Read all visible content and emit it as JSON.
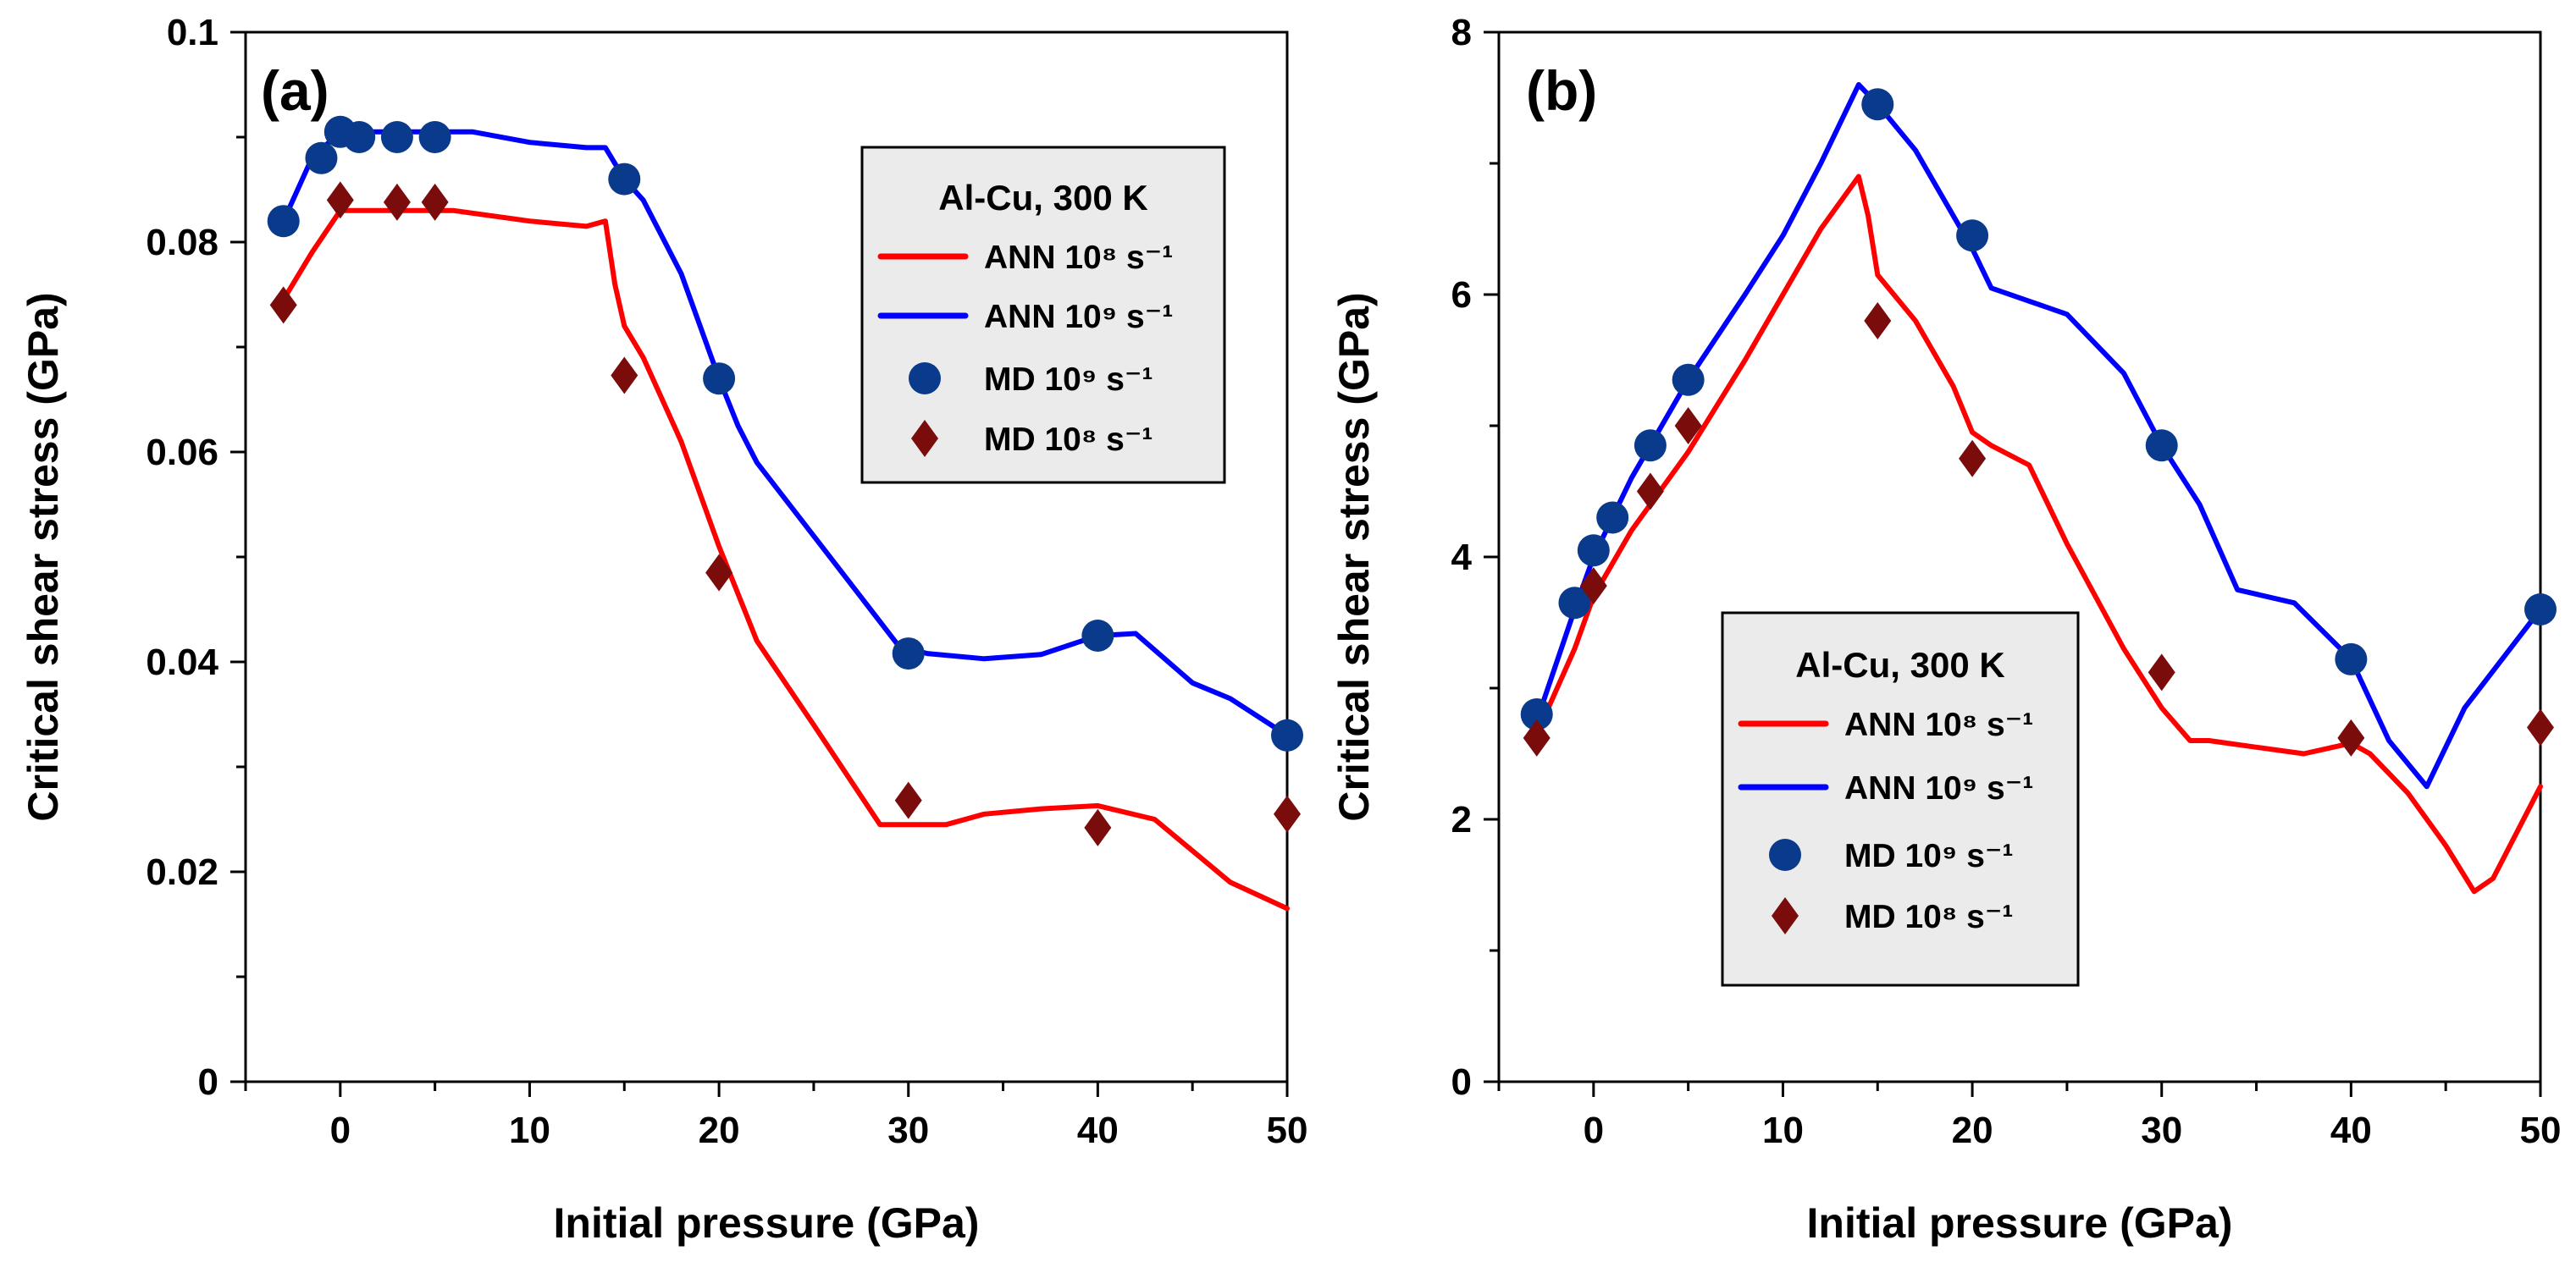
{
  "chart_data": [
    {
      "type": "line",
      "panel_label": "(a)",
      "title": "",
      "xlabel": "Initial pressure (GPa)",
      "ylabel": "Critical shear stress (GPa)",
      "xlim": [
        -5,
        50
      ],
      "ylim": [
        0,
        0.1
      ],
      "xticks": [
        0,
        10,
        20,
        30,
        40,
        50
      ],
      "yticks": [
        0,
        0.02,
        0.04,
        0.06,
        0.08,
        0.1
      ],
      "ytick_labels": [
        "0",
        "0.02",
        "0.04",
        "0.06",
        "0.08",
        "0.1"
      ],
      "legend": {
        "title": "Al-Cu, 300 K",
        "position": "upper-right",
        "entries": [
          {
            "label": "ANN 10⁸ s⁻¹",
            "series": "ann_1e8"
          },
          {
            "label": "ANN 10⁹ s⁻¹",
            "series": "ann_1e9"
          },
          {
            "label": "MD 10⁹ s⁻¹",
            "series": "md_1e9"
          },
          {
            "label": "MD 10⁸ s⁻¹",
            "series": "md_1e8"
          }
        ]
      },
      "series": [
        {
          "id": "ann_1e8",
          "name": "ANN 10⁸ s⁻¹",
          "kind": "line",
          "color": "#ff0000",
          "x": [
            -3,
            -1.5,
            0,
            3,
            6,
            10,
            13,
            14,
            14.5,
            15,
            16,
            18,
            20,
            22,
            25,
            28.5,
            32,
            34,
            37,
            40,
            43,
            45,
            47,
            50
          ],
          "y": [
            0.0745,
            0.079,
            0.083,
            0.083,
            0.083,
            0.082,
            0.0815,
            0.082,
            0.076,
            0.072,
            0.069,
            0.061,
            0.051,
            0.042,
            0.034,
            0.0245,
            0.0245,
            0.0255,
            0.026,
            0.0263,
            0.025,
            0.022,
            0.019,
            0.0165
          ]
        },
        {
          "id": "ann_1e9",
          "name": "ANN 10⁹ s⁻¹",
          "kind": "line",
          "color": "#0000ff",
          "x": [
            -3,
            -1.5,
            0,
            2,
            5,
            7,
            10,
            13,
            14,
            15,
            16,
            18,
            20,
            21,
            22,
            25,
            28,
            29.5,
            31,
            34,
            37,
            40,
            42,
            45,
            47,
            50
          ],
          "y": [
            0.082,
            0.088,
            0.0905,
            0.0905,
            0.0905,
            0.0905,
            0.0895,
            0.089,
            0.089,
            0.086,
            0.084,
            0.077,
            0.067,
            0.0625,
            0.059,
            0.052,
            0.045,
            0.0415,
            0.0408,
            0.0403,
            0.0407,
            0.0425,
            0.0427,
            0.038,
            0.0365,
            0.033
          ]
        },
        {
          "id": "md_1e9",
          "name": "MD 10⁹ s⁻¹",
          "kind": "scatter",
          "marker": "circle",
          "color": "#0a3a8c",
          "x": [
            -3,
            -1,
            0,
            1,
            3,
            5,
            15,
            20,
            30,
            40,
            50
          ],
          "y": [
            0.082,
            0.088,
            0.0905,
            0.09,
            0.09,
            0.09,
            0.086,
            0.067,
            0.0408,
            0.0425,
            0.033
          ]
        },
        {
          "id": "md_1e8",
          "name": "MD 10⁸ s⁻¹",
          "kind": "scatter",
          "marker": "diamond",
          "color": "#7b0c0c",
          "x": [
            -3,
            0,
            3,
            5,
            15,
            20,
            30,
            40,
            50
          ],
          "y": [
            0.074,
            0.084,
            0.0838,
            0.0838,
            0.0673,
            0.0485,
            0.0268,
            0.0242,
            0.0255
          ]
        }
      ]
    },
    {
      "type": "line",
      "panel_label": "(b)",
      "title": "",
      "xlabel": "Initial pressure (GPa)",
      "ylabel": "Critical shear stress (GPa)",
      "xlim": [
        -5,
        50
      ],
      "ylim": [
        0,
        8
      ],
      "xticks": [
        0,
        10,
        20,
        30,
        40,
        50
      ],
      "yticks": [
        0,
        2,
        4,
        6,
        8
      ],
      "ytick_labels": [
        "0",
        "2",
        "4",
        "6",
        "8"
      ],
      "legend": {
        "title": "Al-Cu, 300 K",
        "position": "lower-center",
        "entries": [
          {
            "label": "ANN 10⁸ s⁻¹",
            "series": "ann_1e8"
          },
          {
            "label": "ANN 10⁹ s⁻¹",
            "series": "ann_1e9"
          },
          {
            "label": "MD 10⁹ s⁻¹",
            "series": "md_1e9"
          },
          {
            "label": "MD 10⁸ s⁻¹",
            "series": "md_1e8"
          }
        ]
      },
      "series": [
        {
          "id": "ann_1e8",
          "name": "ANN 10⁸ s⁻¹",
          "kind": "line",
          "color": "#ff0000",
          "x": [
            -3,
            -1,
            0,
            2,
            5,
            8,
            10,
            12,
            14,
            14.5,
            15,
            17,
            19,
            20,
            21,
            23,
            25,
            28,
            30,
            31.5,
            32.5,
            35,
            37.5,
            40,
            41,
            43,
            45,
            46.5,
            47.5,
            50
          ],
          "y": [
            2.65,
            3.3,
            3.7,
            4.2,
            4.8,
            5.5,
            6.0,
            6.5,
            6.9,
            6.6,
            6.15,
            5.8,
            5.3,
            4.95,
            4.85,
            4.7,
            4.1,
            3.3,
            2.85,
            2.6,
            2.6,
            2.55,
            2.5,
            2.58,
            2.5,
            2.2,
            1.8,
            1.45,
            1.55,
            2.25
          ]
        },
        {
          "id": "ann_1e9",
          "name": "ANN 10⁹ s⁻¹",
          "kind": "line",
          "color": "#0000ff",
          "x": [
            -3,
            -1,
            0,
            2,
            5,
            8,
            10,
            12,
            14,
            15,
            17,
            19,
            20,
            21,
            23,
            25,
            28,
            30,
            32,
            34,
            37,
            40,
            42,
            44,
            46,
            50
          ],
          "y": [
            2.75,
            3.6,
            4.0,
            4.6,
            5.35,
            6.0,
            6.45,
            7.0,
            7.6,
            7.45,
            7.1,
            6.6,
            6.35,
            6.05,
            5.95,
            5.85,
            5.4,
            4.85,
            4.4,
            3.75,
            3.65,
            3.22,
            2.6,
            2.25,
            2.85,
            3.6
          ]
        },
        {
          "id": "md_1e9",
          "name": "MD 10⁹ s⁻¹",
          "kind": "scatter",
          "marker": "circle",
          "color": "#0a3a8c",
          "x": [
            -3,
            -1,
            0,
            1,
            3,
            5,
            15,
            20,
            30,
            40,
            50
          ],
          "y": [
            2.8,
            3.65,
            4.05,
            4.3,
            4.85,
            5.35,
            7.45,
            6.45,
            4.85,
            3.22,
            3.6
          ]
        },
        {
          "id": "md_1e8",
          "name": "MD 10⁸ s⁻¹",
          "kind": "scatter",
          "marker": "diamond",
          "color": "#7b0c0c",
          "x": [
            -3,
            0,
            3,
            5,
            15,
            20,
            30,
            40,
            50
          ],
          "y": [
            2.62,
            3.78,
            4.5,
            5.0,
            5.8,
            4.75,
            3.12,
            2.62,
            2.7
          ]
        }
      ]
    }
  ]
}
